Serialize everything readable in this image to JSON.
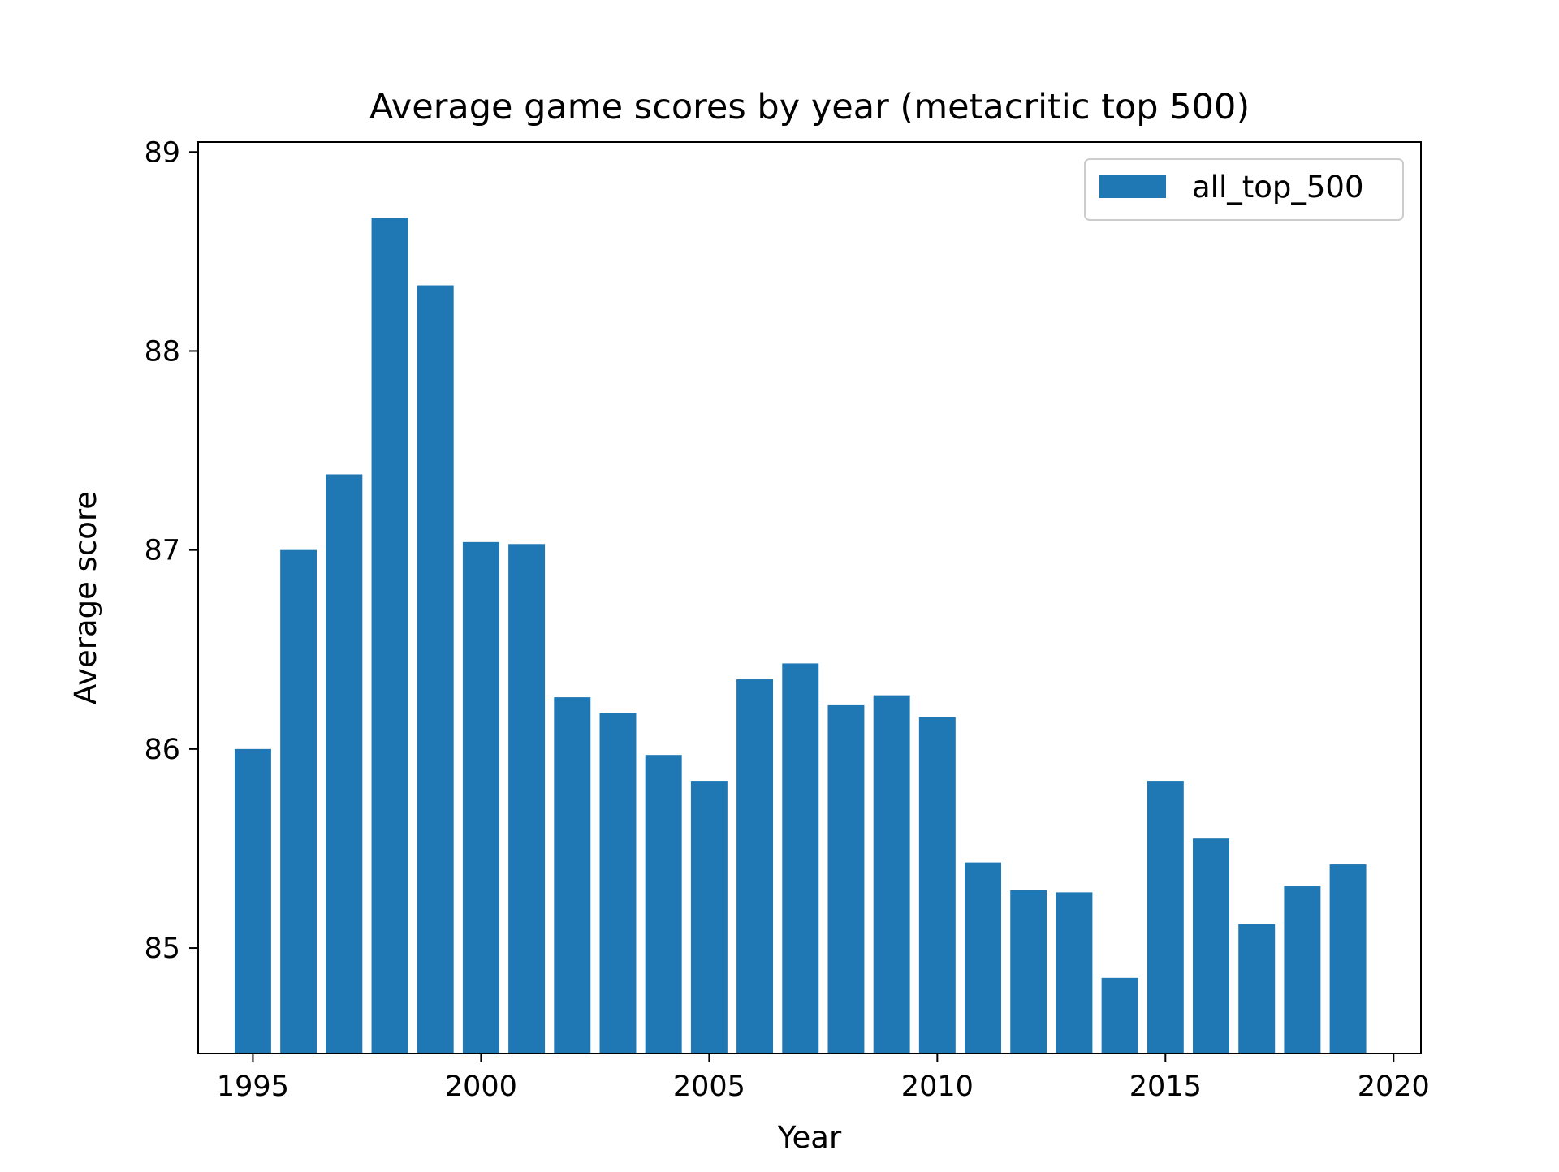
{
  "chart_data": {
    "type": "bar",
    "title": "Average game scores by year (metacritic top 500)",
    "xlabel": "Year",
    "ylabel": "Average score",
    "x": [
      1995,
      1996,
      1997,
      1998,
      1999,
      2000,
      2001,
      2002,
      2003,
      2004,
      2005,
      2006,
      2007,
      2008,
      2009,
      2010,
      2011,
      2012,
      2013,
      2014,
      2015,
      2016,
      2017,
      2018,
      2019
    ],
    "series": [
      {
        "name": "all_top_500",
        "color": "#1f77b4",
        "values": [
          86.0,
          87.0,
          87.38,
          88.67,
          88.33,
          87.04,
          87.03,
          86.26,
          86.18,
          85.97,
          85.84,
          86.35,
          86.43,
          86.22,
          86.27,
          86.16,
          85.43,
          85.29,
          85.28,
          84.85,
          85.84,
          85.55,
          85.12,
          85.31,
          85.42
        ]
      }
    ],
    "xlim": [
      1993.8,
      2020.6
    ],
    "ylim": [
      84.47,
      89.05
    ],
    "xticks": [
      1995,
      2000,
      2005,
      2010,
      2015,
      2020
    ],
    "yticks": [
      85,
      86,
      87,
      88,
      89
    ],
    "grid": false,
    "legend_position": "top-right"
  }
}
